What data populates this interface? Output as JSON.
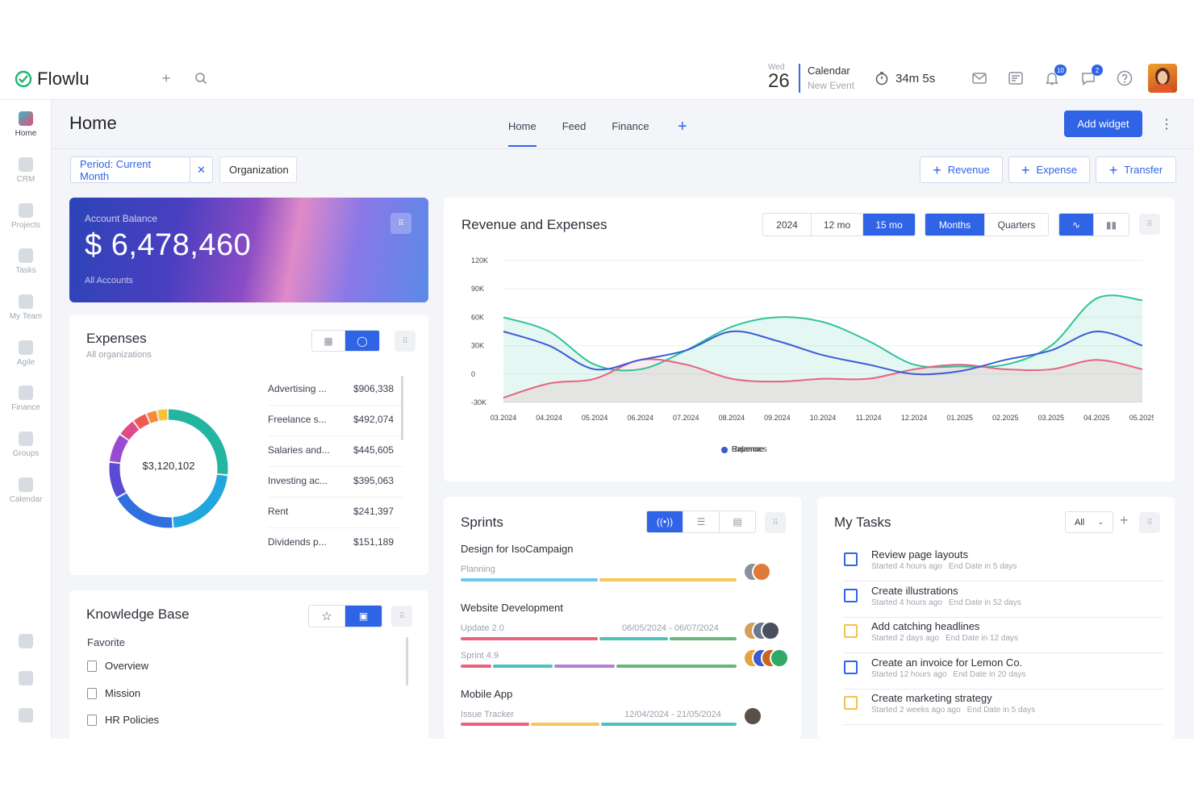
{
  "app": {
    "name": "Flowlu"
  },
  "topbar": {
    "date_weekday": "Wed",
    "date_day": "26",
    "calendar_label": "Calendar",
    "calendar_sub": "New Event",
    "timer": "34m 5s",
    "notifications_count": "10",
    "messages_count": "2"
  },
  "sidebar": {
    "items": [
      {
        "label": "Home"
      },
      {
        "label": "CRM"
      },
      {
        "label": "Projects"
      },
      {
        "label": "Tasks"
      },
      {
        "label": "My Team"
      },
      {
        "label": "Agile"
      },
      {
        "label": "Finance"
      },
      {
        "label": "Groups"
      },
      {
        "label": "Calendar"
      }
    ]
  },
  "header": {
    "title": "Home",
    "tabs": [
      {
        "label": "Home"
      },
      {
        "label": "Feed"
      },
      {
        "label": "Finance"
      }
    ],
    "add_widget": "Add widget"
  },
  "filters": {
    "period": "Period: Current Month",
    "organization": "Organization"
  },
  "actions": {
    "revenue": "Revenue",
    "expense": "Expense",
    "transfer": "Transfer"
  },
  "balance": {
    "label": "Account Balance",
    "amount": "$ 6,478,460",
    "sub": "All Accounts"
  },
  "expenses": {
    "title": "Expenses",
    "sub": "All organizations",
    "total": "$3,120,102",
    "rows": [
      {
        "name": "Advertising ...",
        "amount": "$906,338"
      },
      {
        "name": "Freelance s...",
        "amount": "$492,074"
      },
      {
        "name": "Salaries and...",
        "amount": "$445,605"
      },
      {
        "name": "Investing ac...",
        "amount": "$395,063"
      },
      {
        "name": "Rent",
        "amount": "$241,397"
      },
      {
        "name": "Dividends p...",
        "amount": "$151,189"
      }
    ]
  },
  "revenue_chart": {
    "title": "Revenue and Expenses",
    "range_options": [
      "2024",
      "12 mo",
      "15 mo"
    ],
    "range_selected": "15 mo",
    "granularity_options": [
      "Months",
      "Quarters"
    ],
    "granularity_selected": "Months"
  },
  "chart_data": {
    "type": "area",
    "x": [
      "03.2024",
      "04.2024",
      "05.2024",
      "06.2024",
      "07.2024",
      "08.2024",
      "09.2024",
      "10.2024",
      "11.2024",
      "12.2024",
      "01.2025",
      "02.2025",
      "03.2025",
      "04.2025",
      "05.2025"
    ],
    "y_ticks": [
      "120K",
      "90K",
      "60K",
      "30K",
      "0",
      "-30K"
    ],
    "ylim": [
      -30000,
      120000
    ],
    "series": [
      {
        "name": "Revenue",
        "color": "#2fc39a",
        "values": [
          60000,
          45000,
          10000,
          5000,
          25000,
          50000,
          60000,
          55000,
          35000,
          10000,
          8000,
          10000,
          30000,
          80000,
          78000
        ]
      },
      {
        "name": "Expenses",
        "color": "#e8637e",
        "values": [
          -25000,
          -10000,
          -5000,
          15000,
          10000,
          -5000,
          -8000,
          -5000,
          -5000,
          5000,
          10000,
          5000,
          5000,
          15000,
          5000
        ]
      },
      {
        "name": "Balance",
        "color": "#3b5bd6",
        "values": [
          45000,
          30000,
          5000,
          15000,
          25000,
          45000,
          35000,
          20000,
          10000,
          0,
          3000,
          15000,
          25000,
          45000,
          30000
        ]
      }
    ],
    "grid": true,
    "legend": "bottom"
  },
  "sprints": {
    "title": "Sprints",
    "groups": [
      {
        "name": "Design for IsoCampaign",
        "items": [
          {
            "label": "Planning",
            "dates": ""
          }
        ]
      },
      {
        "name": "Website Development",
        "items": [
          {
            "label": "Update 2.0",
            "dates": "06/05/2024 - 06/07/2024"
          },
          {
            "label": "Sprint 4.9",
            "dates": ""
          }
        ]
      },
      {
        "name": "Mobile App",
        "items": [
          {
            "label": "Issue Tracker",
            "dates": "12/04/2024 - 21/05/2024"
          }
        ]
      }
    ]
  },
  "tasks": {
    "title": "My Tasks",
    "filter": "All",
    "items": [
      {
        "name": "Review page layouts",
        "started": "Started 4 hours ago",
        "end": "End Date in 5 days",
        "color": "#2f64e6"
      },
      {
        "name": "Create illustrations",
        "started": "Started 4 hours ago",
        "end": "End Date in 52 days",
        "color": "#2f64e6"
      },
      {
        "name": "Add catching headlines",
        "started": "Started 2 days ago",
        "end": "End Date in 12 days",
        "color": "#f2c14e"
      },
      {
        "name": "Create an invoice for Lemon Co.",
        "started": "Started 12 hours ago",
        "end": "End Date in 20 days",
        "color": "#2f64e6"
      },
      {
        "name": "Create marketing strategy",
        "started": "Started 2 weeks ago ago",
        "end": "End Date in 5 days",
        "color": "#f2c14e"
      }
    ]
  },
  "knowledge": {
    "title": "Knowledge Base",
    "section": "Favorite",
    "items": [
      {
        "label": "Overview"
      },
      {
        "label": "Mission"
      },
      {
        "label": "HR Policies"
      }
    ]
  }
}
